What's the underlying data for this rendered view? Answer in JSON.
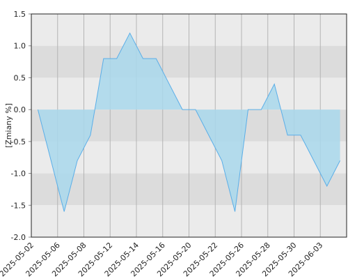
{
  "chart_data": {
    "type": "area",
    "y_label": "[Zmiany %]",
    "categories": [
      null,
      null,
      null,
      null,
      null,
      null,
      null,
      null,
      null,
      null,
      null,
      null,
      null,
      null,
      null,
      null,
      null,
      null,
      null,
      null,
      null,
      null,
      null,
      null
    ],
    "values": [
      0,
      -0.8,
      -1.6,
      -0.8,
      -0.4,
      0.8,
      0.8,
      1.2,
      0.8,
      0.8,
      0.4,
      0,
      0,
      -0.4,
      -0.8,
      -1.6,
      0,
      0,
      0.4,
      -0.4,
      -0.4,
      -0.8,
      -1.2,
      -0.8
    ],
    "color": "#5aaee8",
    "fill": "#a9d8ec",
    "xticks": [
      "2025-05-02",
      "2025-05-06",
      "2025-05-08",
      "2025-05-12",
      "2025-05-14",
      "2025-05-16",
      "2025-05-20",
      "2025-05-22",
      "2025-05-26",
      "2025-05-28",
      "2025-05-30",
      "2025-06-03"
    ],
    "ylim": [
      -2,
      1.5
    ],
    "yticks": [
      1.5,
      {
        "value": 1,
        "label": "1.0"
      },
      0.5,
      {
        "value": 0,
        "label": "0.0"
      },
      -0.5,
      {
        "value": -1,
        "label": "-1.0"
      },
      -1.5,
      {
        "value": -2,
        "label": "-2.0"
      }
    ],
    "grid": true
  }
}
